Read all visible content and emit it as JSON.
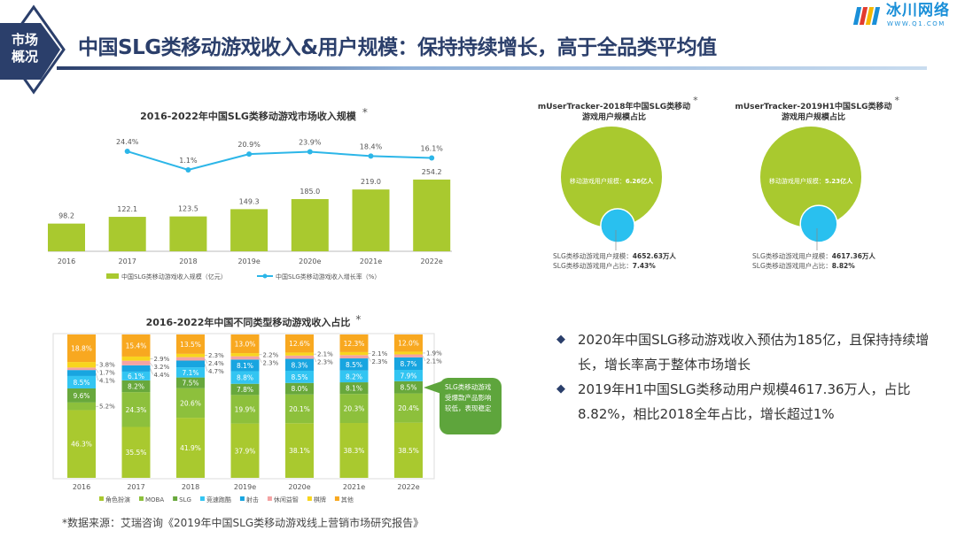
{
  "header": {
    "badge": "市场概况",
    "title": "中国SLG类移动游戏收入&用户规模：保持持续增长，高于全品类平均值",
    "logo_name": "冰川网络",
    "logo_url": "WWW.Q1.COM"
  },
  "colors": {
    "navy": "#2b3f6b",
    "lime": "#a9c92f",
    "line": "#2cb6e8",
    "circle_big": "#a9c92f",
    "circle_small": "#29c0ef"
  },
  "chart_data": [
    {
      "type": "bar+line",
      "title": "2016-2022年中国SLG类移动游戏市场收入规模",
      "title_mark": "*",
      "categories": [
        "2016",
        "2017",
        "2018",
        "2019e",
        "2020e",
        "2021e",
        "2022e"
      ],
      "series": [
        {
          "name": "中国SLG类移动游戏收入规模（亿元）",
          "type": "bar",
          "values": [
            98.2,
            122.1,
            123.5,
            149.3,
            185.0,
            219.0,
            254.2
          ],
          "labels": [
            "98.2",
            "122.1",
            "123.5",
            "149.3",
            "185.0",
            "219.0",
            "254.2"
          ]
        },
        {
          "name": "中国SLG类移动游戏收入增长率（%）",
          "type": "line",
          "values": [
            null,
            24.4,
            1.1,
            20.9,
            23.9,
            18.4,
            16.1
          ],
          "labels": [
            "",
            "24.4%",
            "1.1%",
            "20.9%",
            "23.9%",
            "18.4%",
            "16.1%"
          ]
        }
      ],
      "legend": "bottom"
    },
    {
      "type": "stacked-bar",
      "title": "2016-2022年中国不同类型移动游戏收入占比",
      "title_mark": "*",
      "categories": [
        "2016",
        "2017",
        "2018",
        "2019e",
        "2020e",
        "2021e",
        "2022e"
      ],
      "ylim": [
        0,
        100
      ],
      "series": [
        {
          "name": "角色扮演",
          "color": "#a9c92f",
          "values": [
            46.3,
            35.5,
            41.9,
            37.9,
            38.1,
            38.3,
            38.5
          ]
        },
        {
          "name": "MOBA",
          "color": "#8dc03c",
          "values": [
            5.2,
            24.3,
            20.6,
            19.9,
            20.1,
            20.3,
            20.4
          ]
        },
        {
          "name": "SLG",
          "color": "#68a83c",
          "values": [
            9.6,
            8.2,
            7.5,
            7.8,
            8.0,
            8.1,
            8.5
          ]
        },
        {
          "name": "竞速跑酷",
          "color": "#33c5f2",
          "values": [
            8.5,
            6.1,
            7.1,
            8.8,
            8.5,
            8.2,
            7.9
          ]
        },
        {
          "name": "射击",
          "color": "#18a5e0",
          "values": [
            4.1,
            4.4,
            4.7,
            8.1,
            8.3,
            8.5,
            8.7
          ]
        },
        {
          "name": "休闲益智",
          "color": "#f4a3a3",
          "values": [
            1.7,
            3.2,
            2.4,
            2.3,
            2.3,
            2.3,
            2.1
          ]
        },
        {
          "name": "棋牌",
          "color": "#f8d51e",
          "values": [
            3.8,
            2.9,
            2.3,
            2.2,
            2.1,
            2.1,
            1.9
          ]
        },
        {
          "name": "其他",
          "color": "#f8a820",
          "values": [
            18.8,
            15.4,
            13.5,
            13.0,
            12.6,
            12.3,
            12.0
          ]
        }
      ],
      "legend": "bottom",
      "callout": "SLG类移动游戏受爆款产品影响较低，表现稳定"
    }
  ],
  "user_charts": [
    {
      "title_line1": "mUserTracker-2018年中国SLG类移动",
      "title_line2": "游戏用户规模占比",
      "title_mark": "*",
      "total_label": "移动游戏用户规模：",
      "total_value": "6.26亿人",
      "slg_users_label": "SLG类移动游戏用户规模：",
      "slg_users_value": "4652.63万人",
      "slg_share_label": "SLG类移动游戏用户占比：",
      "slg_share_value": "7.43%",
      "share": 7.43
    },
    {
      "title_line1": "mUserTracker-2019H1中国SLG类移动",
      "title_line2": "游戏用户规模占比",
      "title_mark": "*",
      "total_label": "移动游戏用户规模：",
      "total_value": "5.23亿人",
      "slg_users_label": "SLG类移动游戏用户规模：",
      "slg_users_value": "4617.36万人",
      "slg_share_label": "SLG类移动游戏用户占比：",
      "slg_share_value": "8.82%",
      "share": 8.82
    }
  ],
  "bullets": [
    "2020年中国SLG移动游戏收入预估为185亿，且保持持续增长，增长率高于整体市场增长",
    "2019年H1中国SLG类移动用户规模4617.36万人，占比8.82%，相比2018全年占比，增长超过1%"
  ],
  "bullet_icon": "diamond-bullet-icon",
  "source": "*数据来源：艾瑞咨询《2019年中国SLG类移动游戏线上营销市场研究报告》"
}
